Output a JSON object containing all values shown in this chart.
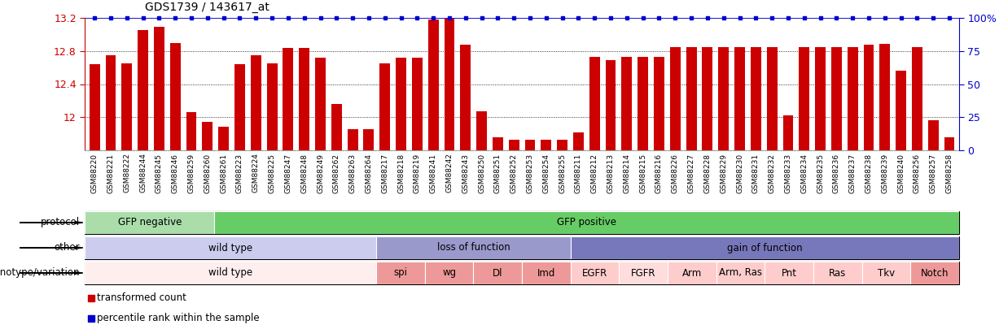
{
  "title": "GDS1739 / 143617_at",
  "ylim": [
    11.6,
    13.2
  ],
  "yticks": [
    12.0,
    12.4,
    12.8,
    13.2
  ],
  "ytick_labels": [
    "12",
    "12.4",
    "12.8",
    "13.2"
  ],
  "right_ytick_pcts": [
    0,
    25,
    50,
    75,
    100
  ],
  "right_ytick_labels": [
    "0",
    "25",
    "50",
    "75",
    "100%"
  ],
  "bar_color": "#cc0000",
  "dot_color": "#0000cc",
  "samples": [
    "GSM88220",
    "GSM88221",
    "GSM88222",
    "GSM88244",
    "GSM88245",
    "GSM88246",
    "GSM88259",
    "GSM88260",
    "GSM88261",
    "GSM88223",
    "GSM88224",
    "GSM88225",
    "GSM88247",
    "GSM88248",
    "GSM88249",
    "GSM88262",
    "GSM88263",
    "GSM88264",
    "GSM88217",
    "GSM88218",
    "GSM88219",
    "GSM88241",
    "GSM88242",
    "GSM88243",
    "GSM88250",
    "GSM88251",
    "GSM88252",
    "GSM88253",
    "GSM88254",
    "GSM88255",
    "GSM88211",
    "GSM88212",
    "GSM88213",
    "GSM88214",
    "GSM88215",
    "GSM88216",
    "GSM88226",
    "GSM88227",
    "GSM88228",
    "GSM88229",
    "GSM88230",
    "GSM88231",
    "GSM88232",
    "GSM88233",
    "GSM88234",
    "GSM88235",
    "GSM88236",
    "GSM88237",
    "GSM88238",
    "GSM88239",
    "GSM88240",
    "GSM88256",
    "GSM88257",
    "GSM88258"
  ],
  "values": [
    12.64,
    12.75,
    12.65,
    13.05,
    13.09,
    12.9,
    12.06,
    11.94,
    11.88,
    12.64,
    12.75,
    12.65,
    12.84,
    12.84,
    12.72,
    12.16,
    11.86,
    11.86,
    12.65,
    12.72,
    12.72,
    13.18,
    13.19,
    12.88,
    12.07,
    11.76,
    11.73,
    11.73,
    11.73,
    11.73,
    11.82,
    12.73,
    12.69,
    12.73,
    12.73,
    12.73,
    12.85,
    12.85,
    12.85,
    12.85,
    12.85,
    12.85,
    12.85,
    12.02,
    12.85,
    12.85,
    12.85,
    12.85,
    12.88,
    12.89,
    12.56,
    12.85,
    11.96,
    11.76
  ],
  "protocol_groups": [
    {
      "label": "GFP negative",
      "start": 0,
      "end": 8,
      "color": "#aaddaa"
    },
    {
      "label": "GFP positive",
      "start": 8,
      "end": 54,
      "color": "#66cc66"
    }
  ],
  "other_groups": [
    {
      "label": "wild type",
      "start": 0,
      "end": 18,
      "color": "#ccccee"
    },
    {
      "label": "loss of function",
      "start": 18,
      "end": 30,
      "color": "#9999cc"
    },
    {
      "label": "gain of function",
      "start": 30,
      "end": 54,
      "color": "#7777bb"
    }
  ],
  "genotype_groups": [
    {
      "label": "wild type",
      "start": 0,
      "end": 18,
      "color": "#ffeeee"
    },
    {
      "label": "spi",
      "start": 18,
      "end": 21,
      "color": "#ee9999"
    },
    {
      "label": "wg",
      "start": 21,
      "end": 24,
      "color": "#ee9999"
    },
    {
      "label": "Dl",
      "start": 24,
      "end": 27,
      "color": "#ee9999"
    },
    {
      "label": "Imd",
      "start": 27,
      "end": 30,
      "color": "#ee9999"
    },
    {
      "label": "EGFR",
      "start": 30,
      "end": 33,
      "color": "#ffcccc"
    },
    {
      "label": "FGFR",
      "start": 33,
      "end": 36,
      "color": "#ffdddd"
    },
    {
      "label": "Arm",
      "start": 36,
      "end": 39,
      "color": "#ffcccc"
    },
    {
      "label": "Arm, Ras",
      "start": 39,
      "end": 42,
      "color": "#ffcccc"
    },
    {
      "label": "Pnt",
      "start": 42,
      "end": 45,
      "color": "#ffcccc"
    },
    {
      "label": "Ras",
      "start": 45,
      "end": 48,
      "color": "#ffcccc"
    },
    {
      "label": "Tkv",
      "start": 48,
      "end": 51,
      "color": "#ffcccc"
    },
    {
      "label": "Notch",
      "start": 51,
      "end": 54,
      "color": "#ee9999"
    }
  ],
  "xtick_bg_color": "#cccccc",
  "label_font_size": 8.5,
  "tick_label_font_size": 6.5
}
